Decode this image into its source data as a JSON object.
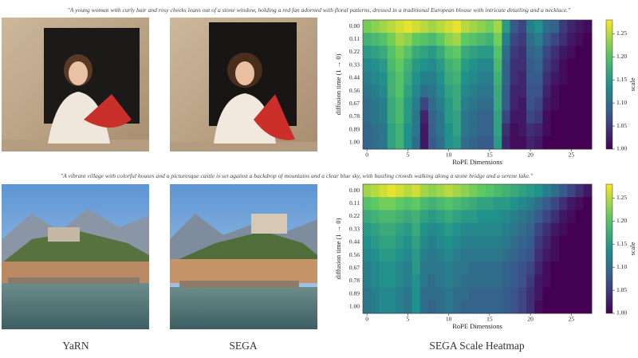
{
  "prompts": [
    "\"A young woman with curly hair and rosy cheeks leans out of a stone window, holding a red fan adorned with floral patterns, dressed in a traditional European blouse with intricate detailing and a necklace.\"",
    "\"A vibrant village with colorful houses and a picturesque castle is set against a backdrop of mountains and a clear blue sky, with bustling crowds walking along a stone bridge and a serene lake.\""
  ],
  "column_labels": [
    "YaRN",
    "SEGA",
    "SEGA Scale Heatmap"
  ],
  "chart_data": [
    {
      "type": "heatmap",
      "colormap": "viridis",
      "xlabel": "RoPE Dimensions",
      "ylabel": "diffusion time (1 → 0)",
      "colorbar_label": "scale",
      "y_categories": [
        "0.00",
        "0.11",
        "0.22",
        "0.33",
        "0.44",
        "0.56",
        "0.67",
        "0.78",
        "0.89",
        "1.00"
      ],
      "xticks": [
        0,
        5,
        10,
        15,
        20,
        25
      ],
      "clim": [
        1.0,
        1.28
      ],
      "cticks": [
        {
          "value": 1.0,
          "label": "1.00"
        },
        {
          "value": 1.05,
          "label": "1.05"
        },
        {
          "value": 1.1,
          "label": "1.10"
        },
        {
          "value": 1.15,
          "label": "1.15"
        },
        {
          "value": 1.2,
          "label": "1.20"
        },
        {
          "value": 1.25,
          "label": "1.25"
        }
      ],
      "values": [
        [
          1.22,
          1.23,
          1.24,
          1.25,
          1.26,
          1.27,
          1.26,
          1.25,
          1.24,
          1.25,
          1.26,
          1.27,
          1.25,
          1.24,
          1.23,
          1.22,
          1.24,
          1.15,
          1.08,
          1.06,
          1.12,
          1.14,
          1.1,
          1.09,
          1.05,
          1.03,
          1.02,
          1.01
        ],
        [
          1.18,
          1.19,
          1.2,
          1.22,
          1.24,
          1.23,
          1.21,
          1.2,
          1.19,
          1.21,
          1.23,
          1.24,
          1.21,
          1.2,
          1.19,
          1.18,
          1.22,
          1.12,
          1.06,
          1.05,
          1.1,
          1.12,
          1.08,
          1.06,
          1.04,
          1.02,
          1.01,
          1.0
        ],
        [
          1.15,
          1.16,
          1.17,
          1.2,
          1.22,
          1.2,
          1.17,
          1.16,
          1.15,
          1.17,
          1.2,
          1.21,
          1.17,
          1.16,
          1.15,
          1.15,
          1.2,
          1.1,
          1.05,
          1.04,
          1.09,
          1.1,
          1.06,
          1.04,
          1.02,
          1.01,
          1.0,
          1.0
        ],
        [
          1.13,
          1.14,
          1.15,
          1.19,
          1.21,
          1.18,
          1.15,
          1.14,
          1.13,
          1.15,
          1.18,
          1.19,
          1.15,
          1.14,
          1.13,
          1.13,
          1.19,
          1.09,
          1.04,
          1.04,
          1.08,
          1.09,
          1.05,
          1.03,
          1.01,
          1.0,
          1.0,
          1.0
        ],
        [
          1.12,
          1.13,
          1.14,
          1.18,
          1.2,
          1.17,
          1.14,
          1.12,
          1.12,
          1.14,
          1.17,
          1.18,
          1.14,
          1.13,
          1.12,
          1.12,
          1.18,
          1.09,
          1.04,
          1.03,
          1.08,
          1.08,
          1.04,
          1.02,
          1.01,
          1.0,
          1.0,
          1.0
        ],
        [
          1.11,
          1.12,
          1.13,
          1.18,
          1.2,
          1.16,
          1.13,
          1.1,
          1.11,
          1.13,
          1.16,
          1.17,
          1.13,
          1.12,
          1.11,
          1.11,
          1.17,
          1.08,
          1.03,
          1.03,
          1.07,
          1.07,
          1.03,
          1.01,
          1.0,
          1.0,
          1.0,
          1.0
        ],
        [
          1.1,
          1.11,
          1.12,
          1.17,
          1.19,
          1.15,
          1.12,
          1.06,
          1.1,
          1.12,
          1.15,
          1.17,
          1.12,
          1.11,
          1.1,
          1.1,
          1.17,
          1.08,
          1.03,
          1.02,
          1.07,
          1.06,
          1.02,
          1.01,
          1.0,
          1.0,
          1.0,
          1.0
        ],
        [
          1.1,
          1.11,
          1.12,
          1.17,
          1.19,
          1.15,
          1.11,
          1.03,
          1.09,
          1.11,
          1.15,
          1.16,
          1.11,
          1.1,
          1.09,
          1.09,
          1.16,
          1.06,
          1.02,
          1.02,
          1.06,
          1.05,
          1.01,
          1.0,
          1.0,
          1.0,
          1.0,
          1.0
        ],
        [
          1.09,
          1.1,
          1.11,
          1.16,
          1.18,
          1.14,
          1.11,
          1.02,
          1.09,
          1.11,
          1.14,
          1.16,
          1.11,
          1.1,
          1.09,
          1.09,
          1.16,
          1.04,
          1.01,
          1.02,
          1.04,
          1.03,
          1.01,
          1.0,
          1.0,
          1.0,
          1.0,
          1.0
        ],
        [
          1.09,
          1.1,
          1.11,
          1.16,
          1.18,
          1.14,
          1.1,
          1.02,
          1.08,
          1.1,
          1.14,
          1.15,
          1.1,
          1.09,
          1.08,
          1.08,
          1.15,
          1.03,
          1.01,
          1.01,
          1.03,
          1.02,
          1.0,
          1.0,
          1.0,
          1.0,
          1.0,
          1.0
        ]
      ]
    },
    {
      "type": "heatmap",
      "colormap": "viridis",
      "xlabel": "RoPE Dimensions",
      "ylabel": "diffusion time (1 → 0)",
      "colorbar_label": "scale",
      "y_categories": [
        "0.00",
        "0.11",
        "0.22",
        "0.33",
        "0.44",
        "0.56",
        "0.67",
        "0.78",
        "0.89",
        "1.00"
      ],
      "xticks": [
        0,
        5,
        10,
        15,
        20,
        25
      ],
      "clim": [
        1.0,
        1.28
      ],
      "cticks": [
        {
          "value": 1.0,
          "label": "1.00"
        },
        {
          "value": 1.05,
          "label": "1.05"
        },
        {
          "value": 1.1,
          "label": "1.10"
        },
        {
          "value": 1.15,
          "label": "1.15"
        },
        {
          "value": 1.2,
          "label": "1.20"
        },
        {
          "value": 1.25,
          "label": "1.25"
        }
      ],
      "values": [
        [
          1.24,
          1.25,
          1.26,
          1.27,
          1.26,
          1.25,
          1.26,
          1.24,
          1.23,
          1.24,
          1.25,
          1.24,
          1.23,
          1.22,
          1.21,
          1.2,
          1.19,
          1.18,
          1.17,
          1.16,
          1.15,
          1.14,
          1.12,
          1.1,
          1.08,
          1.06,
          1.04,
          1.02
        ],
        [
          1.2,
          1.21,
          1.22,
          1.22,
          1.21,
          1.2,
          1.21,
          1.19,
          1.18,
          1.19,
          1.2,
          1.19,
          1.18,
          1.17,
          1.16,
          1.16,
          1.15,
          1.15,
          1.14,
          1.13,
          1.12,
          1.1,
          1.08,
          1.06,
          1.04,
          1.02,
          1.01,
          1.0
        ],
        [
          1.17,
          1.18,
          1.19,
          1.19,
          1.18,
          1.17,
          1.18,
          1.16,
          1.15,
          1.16,
          1.17,
          1.16,
          1.15,
          1.15,
          1.14,
          1.14,
          1.14,
          1.13,
          1.12,
          1.11,
          1.1,
          1.08,
          1.06,
          1.04,
          1.02,
          1.01,
          1.0,
          1.0
        ],
        [
          1.15,
          1.16,
          1.17,
          1.17,
          1.16,
          1.15,
          1.17,
          1.14,
          1.13,
          1.14,
          1.15,
          1.14,
          1.13,
          1.13,
          1.13,
          1.13,
          1.13,
          1.12,
          1.11,
          1.1,
          1.09,
          1.06,
          1.04,
          1.02,
          1.01,
          1.0,
          1.0,
          1.0
        ],
        [
          1.14,
          1.15,
          1.16,
          1.16,
          1.15,
          1.14,
          1.16,
          1.13,
          1.12,
          1.13,
          1.14,
          1.13,
          1.12,
          1.12,
          1.12,
          1.12,
          1.12,
          1.11,
          1.1,
          1.09,
          1.08,
          1.05,
          1.03,
          1.01,
          1.0,
          1.0,
          1.0,
          1.0
        ],
        [
          1.13,
          1.14,
          1.15,
          1.15,
          1.14,
          1.13,
          1.15,
          1.12,
          1.11,
          1.12,
          1.13,
          1.12,
          1.11,
          1.11,
          1.11,
          1.11,
          1.11,
          1.1,
          1.09,
          1.08,
          1.07,
          1.04,
          1.02,
          1.01,
          1.0,
          1.0,
          1.0,
          1.0
        ],
        [
          1.12,
          1.13,
          1.14,
          1.14,
          1.13,
          1.12,
          1.15,
          1.11,
          1.11,
          1.11,
          1.12,
          1.11,
          1.11,
          1.1,
          1.1,
          1.1,
          1.1,
          1.09,
          1.08,
          1.07,
          1.06,
          1.03,
          1.01,
          1.0,
          1.0,
          1.0,
          1.0,
          1.0
        ],
        [
          1.12,
          1.13,
          1.14,
          1.14,
          1.13,
          1.12,
          1.14,
          1.11,
          1.1,
          1.11,
          1.12,
          1.11,
          1.1,
          1.1,
          1.1,
          1.1,
          1.1,
          1.09,
          1.08,
          1.07,
          1.05,
          1.02,
          1.01,
          1.0,
          1.0,
          1.0,
          1.0,
          1.0
        ],
        [
          1.11,
          1.12,
          1.13,
          1.13,
          1.12,
          1.11,
          1.14,
          1.1,
          1.1,
          1.1,
          1.11,
          1.1,
          1.1,
          1.09,
          1.09,
          1.09,
          1.09,
          1.08,
          1.07,
          1.06,
          1.04,
          1.02,
          1.0,
          1.0,
          1.0,
          1.0,
          1.0,
          1.0
        ],
        [
          1.11,
          1.12,
          1.13,
          1.13,
          1.12,
          1.11,
          1.14,
          1.1,
          1.09,
          1.1,
          1.11,
          1.1,
          1.09,
          1.09,
          1.09,
          1.09,
          1.09,
          1.08,
          1.07,
          1.06,
          1.04,
          1.01,
          1.0,
          1.0,
          1.0,
          1.0,
          1.0,
          1.0
        ]
      ]
    }
  ]
}
